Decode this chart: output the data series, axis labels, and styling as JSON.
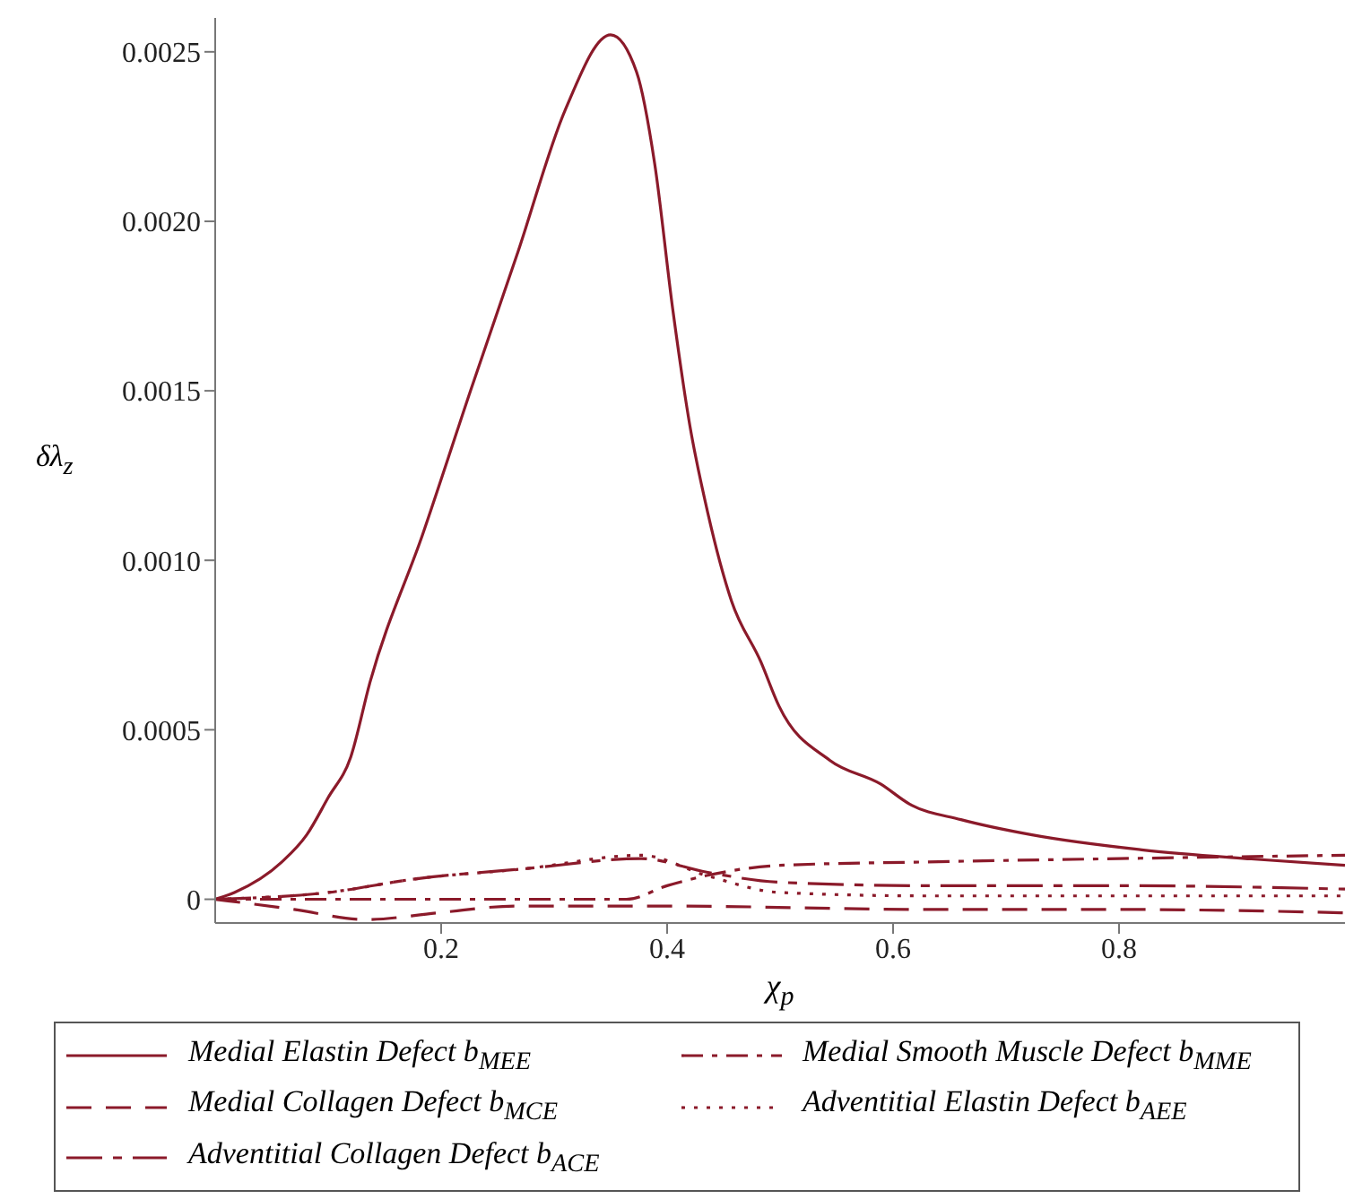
{
  "chart_data": {
    "type": "line",
    "xlabel": "χ$_{p}$",
    "ylabel": "δλ$_{z}$",
    "xlim": [
      0,
      1
    ],
    "ylim": [
      -7e-05,
      0.0026
    ],
    "xticks": [
      0.2,
      0.4,
      0.6,
      0.8
    ],
    "yticks": [
      0,
      {
        "value": 0.0005,
        "label": "0.0005"
      },
      {
        "value": 0.001,
        "label": "0.0010"
      },
      {
        "value": 0.0015,
        "label": "0.0015"
      },
      {
        "value": 0.002,
        "label": "0.0020"
      },
      {
        "value": 0.0025,
        "label": "0.0025"
      }
    ],
    "legend": "bottom",
    "marker": "none",
    "series": [
      {
        "name": "Medial Elastin Defect b$_{MEE}$",
        "color": "#8b1a2a",
        "line_style": "solid",
        "x": [
          0,
          0.017,
          0.059,
          0.081,
          0.1,
          0.12,
          0.137,
          0.184,
          0.226,
          0.268,
          0.31,
          0.35,
          0.373,
          0.389,
          0.405,
          0.42,
          0.436,
          0.457,
          0.483,
          0.499,
          0.544,
          0.589,
          0.615,
          0.66,
          0.723,
          0.82,
          0.917,
          1
        ],
        "values": [
          0,
          2e-05,
          0.00011,
          0.00019,
          0.0003,
          0.00042,
          0.00064,
          0.00108,
          0.0015,
          0.00191,
          0.00233,
          0.00255,
          0.00244,
          0.00217,
          0.00174,
          0.0014,
          0.00114,
          0.00088,
          0.0007,
          0.00057,
          0.00041,
          0.00034,
          0.00028,
          0.000235,
          0.00019,
          0.000146,
          0.000119,
          0.0001
        ]
      },
      {
        "name": "Medial Smooth Muscle Defect b$_{MME}$",
        "color": "#8b1a2a",
        "line_style": "dashdot",
        "x": [
          0,
          0.2,
          0.364,
          0.4,
          0.435,
          0.5,
          0.627,
          0.8,
          1
        ],
        "values": [
          0,
          0,
          0,
          4e-05,
          7e-05,
          0.0001,
          0.00011,
          0.00012,
          0.00013
        ]
      },
      {
        "name": "Medial Collagen Defect b$_{MCE}$",
        "color": "#8b1a2a",
        "line_style": "dashed",
        "x": [
          0,
          0.07,
          0.133,
          0.197,
          0.266,
          0.4,
          0.63,
          0.8,
          1
        ],
        "values": [
          0,
          -3e-05,
          -6e-05,
          -4e-05,
          -2e-05,
          -2e-05,
          -3e-05,
          -3e-05,
          -4e-05
        ]
      },
      {
        "name": "Adventitial Elastin Defect b$_{AEE}$",
        "color": "#8b1a2a",
        "line_style": "dotted",
        "x": [
          0,
          0.1,
          0.177,
          0.274,
          0.377,
          0.435,
          0.5,
          0.63,
          0.8,
          1
        ],
        "values": [
          0,
          2e-05,
          6e-05,
          9e-05,
          0.00013,
          7e-05,
          2e-05,
          1e-05,
          1e-05,
          1e-05
        ]
      },
      {
        "name": "Adventitial Collagen Defect b$_{ACE}$",
        "color": "#8b1a2a",
        "line_style": "longdash",
        "x": [
          0,
          0.1,
          0.177,
          0.274,
          0.377,
          0.435,
          0.5,
          0.63,
          0.8,
          1
        ],
        "values": [
          0,
          2e-05,
          6e-05,
          9e-05,
          0.00012,
          8e-05,
          5e-05,
          4e-05,
          4e-05,
          3e-05
        ]
      }
    ]
  }
}
